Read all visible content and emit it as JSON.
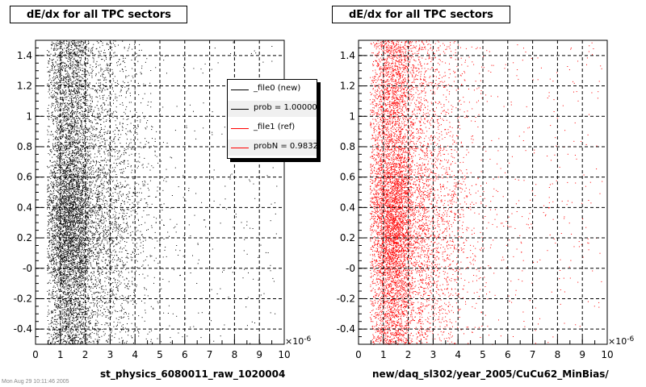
{
  "charts": {
    "left": {
      "title": "dE/dx for all TPC sectors",
      "xlabel": "st_physics_6080011_raw_1020004",
      "exponent": "×10",
      "exponent_power": "-6",
      "marker_color": "#000000"
    },
    "right": {
      "title": "dE/dx for all TPC sectors",
      "xlabel": "new/daq_sl302/year_2005/CuCu62_MinBias/",
      "exponent": "×10",
      "exponent_power": "-6",
      "marker_color": "#ff0000"
    }
  },
  "legend": {
    "entries": [
      {
        "label": "_file0 (new)",
        "color": "#000000"
      },
      {
        "label": "prob = 1.000000",
        "color": "#000000"
      },
      {
        "label": "_file1 (ref)",
        "color": "#ff0000"
      },
      {
        "label": "probN = 0.983254",
        "color": "#ff0000"
      }
    ]
  },
  "footnote": "Mon Aug 29 10:11:46 2005",
  "chart_data": [
    {
      "type": "scatter",
      "title": "dE/dx for all TPC sectors",
      "xlabel": "st_physics_6080011_raw_1020004",
      "ylabel": "",
      "xlim": [
        0,
        10
      ],
      "ylim": [
        -0.5,
        1.5
      ],
      "x_scale_exponent": -6,
      "x_ticks": [
        0,
        1,
        2,
        3,
        4,
        5,
        6,
        7,
        8,
        9,
        10
      ],
      "y_ticks": [
        -0.4,
        -0.2,
        -0.0,
        0.2,
        0.4,
        0.6,
        0.8,
        1.0,
        1.2,
        1.4
      ],
      "y_tick_labels": [
        "-0.4",
        "-0.2",
        "-0",
        "0.2",
        "0.4",
        "0.6",
        "0.8",
        "1",
        "1.2",
        "1.4"
      ],
      "grid": true,
      "legend_position": "top-right",
      "series": [
        {
          "name": "_file0 (new)",
          "color": "#000000",
          "peak_x": 1.4,
          "dense_x_range": [
            0.5,
            2.5
          ],
          "y_range": [
            -0.5,
            1.5
          ]
        }
      ]
    },
    {
      "type": "scatter",
      "title": "dE/dx for all TPC sectors",
      "xlabel": "new/daq_sl302/year_2005/CuCu62_MinBias/",
      "ylabel": "",
      "xlim": [
        0,
        10
      ],
      "ylim": [
        -0.5,
        1.5
      ],
      "x_scale_exponent": -6,
      "x_ticks": [
        0,
        1,
        2,
        3,
        4,
        5,
        6,
        7,
        8,
        9,
        10
      ],
      "y_ticks": [
        -0.4,
        -0.2,
        -0.0,
        0.2,
        0.4,
        0.6,
        0.8,
        1.0,
        1.2,
        1.4
      ],
      "y_tick_labels": [
        "-0.4",
        "-0.2",
        "-0",
        "0.2",
        "0.4",
        "0.6",
        "0.8",
        "1",
        "1.2",
        "1.4"
      ],
      "grid": true,
      "series": [
        {
          "name": "_file1 (ref)",
          "color": "#ff0000",
          "peak_x": 1.4,
          "dense_x_range": [
            0.5,
            2.5
          ],
          "y_range": [
            -0.5,
            1.5
          ]
        }
      ]
    }
  ]
}
